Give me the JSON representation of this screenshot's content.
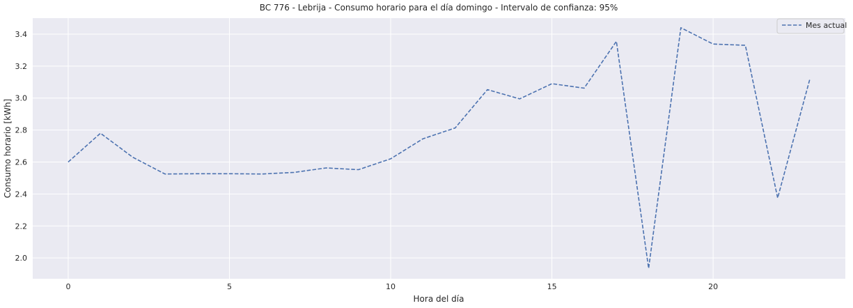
{
  "chart_data": {
    "type": "line",
    "title": "BC 776 - Lebrija - Consumo horario para el día domingo - Intervalo de confianza: 95%",
    "xlabel": "Hora del día",
    "ylabel": "Consumo horario [kWh]",
    "xlim": [
      -1.1,
      24.1
    ],
    "ylim": [
      1.87,
      3.5
    ],
    "x_ticks": [
      0,
      5,
      10,
      15,
      20
    ],
    "y_ticks": [
      2.0,
      2.2,
      2.4,
      2.6,
      2.8,
      3.0,
      3.2,
      3.4
    ],
    "grid": true,
    "legend_position": "top-right",
    "background_color": "#eaeaf2",
    "grid_color": "#ffffff",
    "series": [
      {
        "name": "Mes actual",
        "color": "#4c72b0",
        "line_style": "dashed",
        "x": [
          0,
          1,
          2,
          3,
          4,
          5,
          6,
          7,
          8,
          9,
          10,
          11,
          12,
          13,
          14,
          15,
          16,
          17,
          18,
          19,
          20,
          21,
          22,
          23
        ],
        "values": [
          2.6,
          2.78,
          2.63,
          2.525,
          2.527,
          2.527,
          2.525,
          2.535,
          2.563,
          2.552,
          2.62,
          2.745,
          2.813,
          3.053,
          2.995,
          3.09,
          3.062,
          3.355,
          1.935,
          3.44,
          3.338,
          3.33,
          2.375,
          3.12
        ]
      }
    ]
  }
}
